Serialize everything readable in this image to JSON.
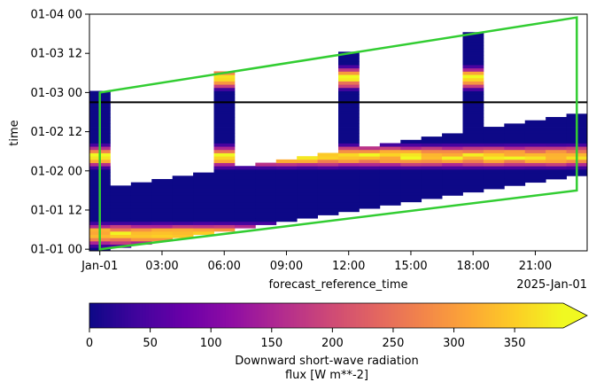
{
  "chart_data": {
    "type": "heatmap",
    "xlabel": "forecast_reference_time",
    "ylabel": "time",
    "x_offset_label": "2025-Jan-01",
    "x_range_hours": [
      -0.5,
      23.5
    ],
    "y_range_hours": [
      -0.5,
      72
    ],
    "x_ticks": [
      {
        "hour": 0,
        "label": "Jan-01"
      },
      {
        "hour": 3,
        "label": "03:00"
      },
      {
        "hour": 6,
        "label": "06:00"
      },
      {
        "hour": 9,
        "label": "09:00"
      },
      {
        "hour": 12,
        "label": "12:00"
      },
      {
        "hour": 15,
        "label": "15:00"
      },
      {
        "hour": 18,
        "label": "18:00"
      },
      {
        "hour": 21,
        "label": "21:00"
      }
    ],
    "y_ticks": [
      {
        "hour": 0,
        "label": "01-01 00"
      },
      {
        "hour": 12,
        "label": "01-01 12"
      },
      {
        "hour": 24,
        "label": "01-02 00"
      },
      {
        "hour": 36,
        "label": "01-02 12"
      },
      {
        "hour": 48,
        "label": "01-03 00"
      },
      {
        "hour": 60,
        "label": "01-03 12"
      },
      {
        "hour": 72,
        "label": "01-04 00"
      }
    ],
    "forecast_length_short_hours": 18,
    "forecast_length_long_hours": 48,
    "long_runs_at_hours": [
      0,
      6,
      12,
      18
    ],
    "horizontal_line_time_hour": 45,
    "outline_polygon_hours": [
      [
        0,
        0
      ],
      [
        23,
        18
      ],
      [
        23,
        71
      ],
      [
        0,
        48
      ]
    ],
    "colorbar": {
      "label_line1": "Downward short-wave radiation",
      "label_line2": "flux [W m**-2]",
      "vmin": 0,
      "vmax": 390,
      "extend": "max",
      "ticks": [
        0,
        50,
        100,
        150,
        200,
        250,
        300,
        350
      ],
      "colormap": "plasma"
    },
    "colors": {
      "outline": "#32cd32",
      "horizontal_line": "#000000",
      "plasma_stops": [
        "#0d0887",
        "#41049d",
        "#6a00a8",
        "#8f0da4",
        "#b12a90",
        "#cc4778",
        "#e16462",
        "#f2844b",
        "#fca636",
        "#fcce25",
        "#f0f921"
      ]
    }
  }
}
